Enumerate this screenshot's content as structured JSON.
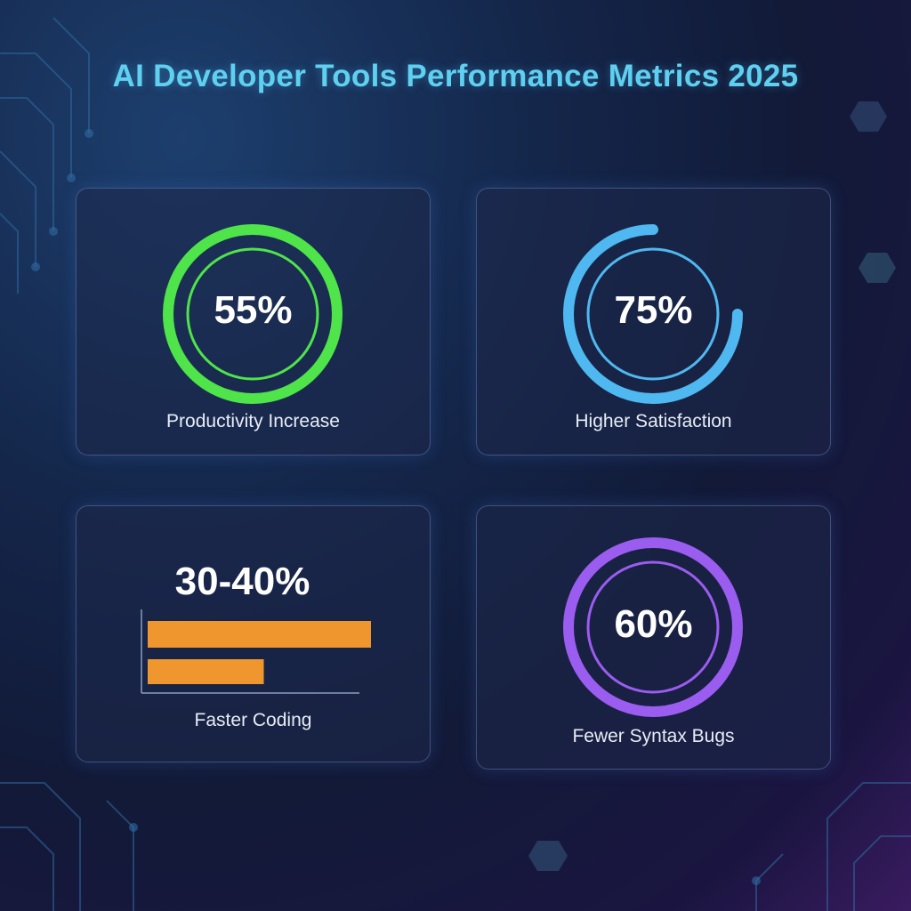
{
  "title": "AI Developer Tools Performance Metrics 2025",
  "chart_data": [
    {
      "type": "gauge",
      "value": 55,
      "value_label": "55%",
      "label": "Productivity Increase",
      "color": "#4ee44a"
    },
    {
      "type": "gauge",
      "value": 75,
      "value_label": "75%",
      "label": "Higher Satisfaction",
      "color": "#4fb8f0"
    },
    {
      "type": "bar",
      "orientation": "horizontal",
      "value_label": "30-40%",
      "label": "Faster Coding",
      "relative_lengths": [
        1.0,
        0.52
      ],
      "color": "#f0962e"
    },
    {
      "type": "gauge",
      "value": 60,
      "value_label": "60%",
      "label": "Fewer Syntax Bugs",
      "color": "#9b5cf0"
    }
  ]
}
